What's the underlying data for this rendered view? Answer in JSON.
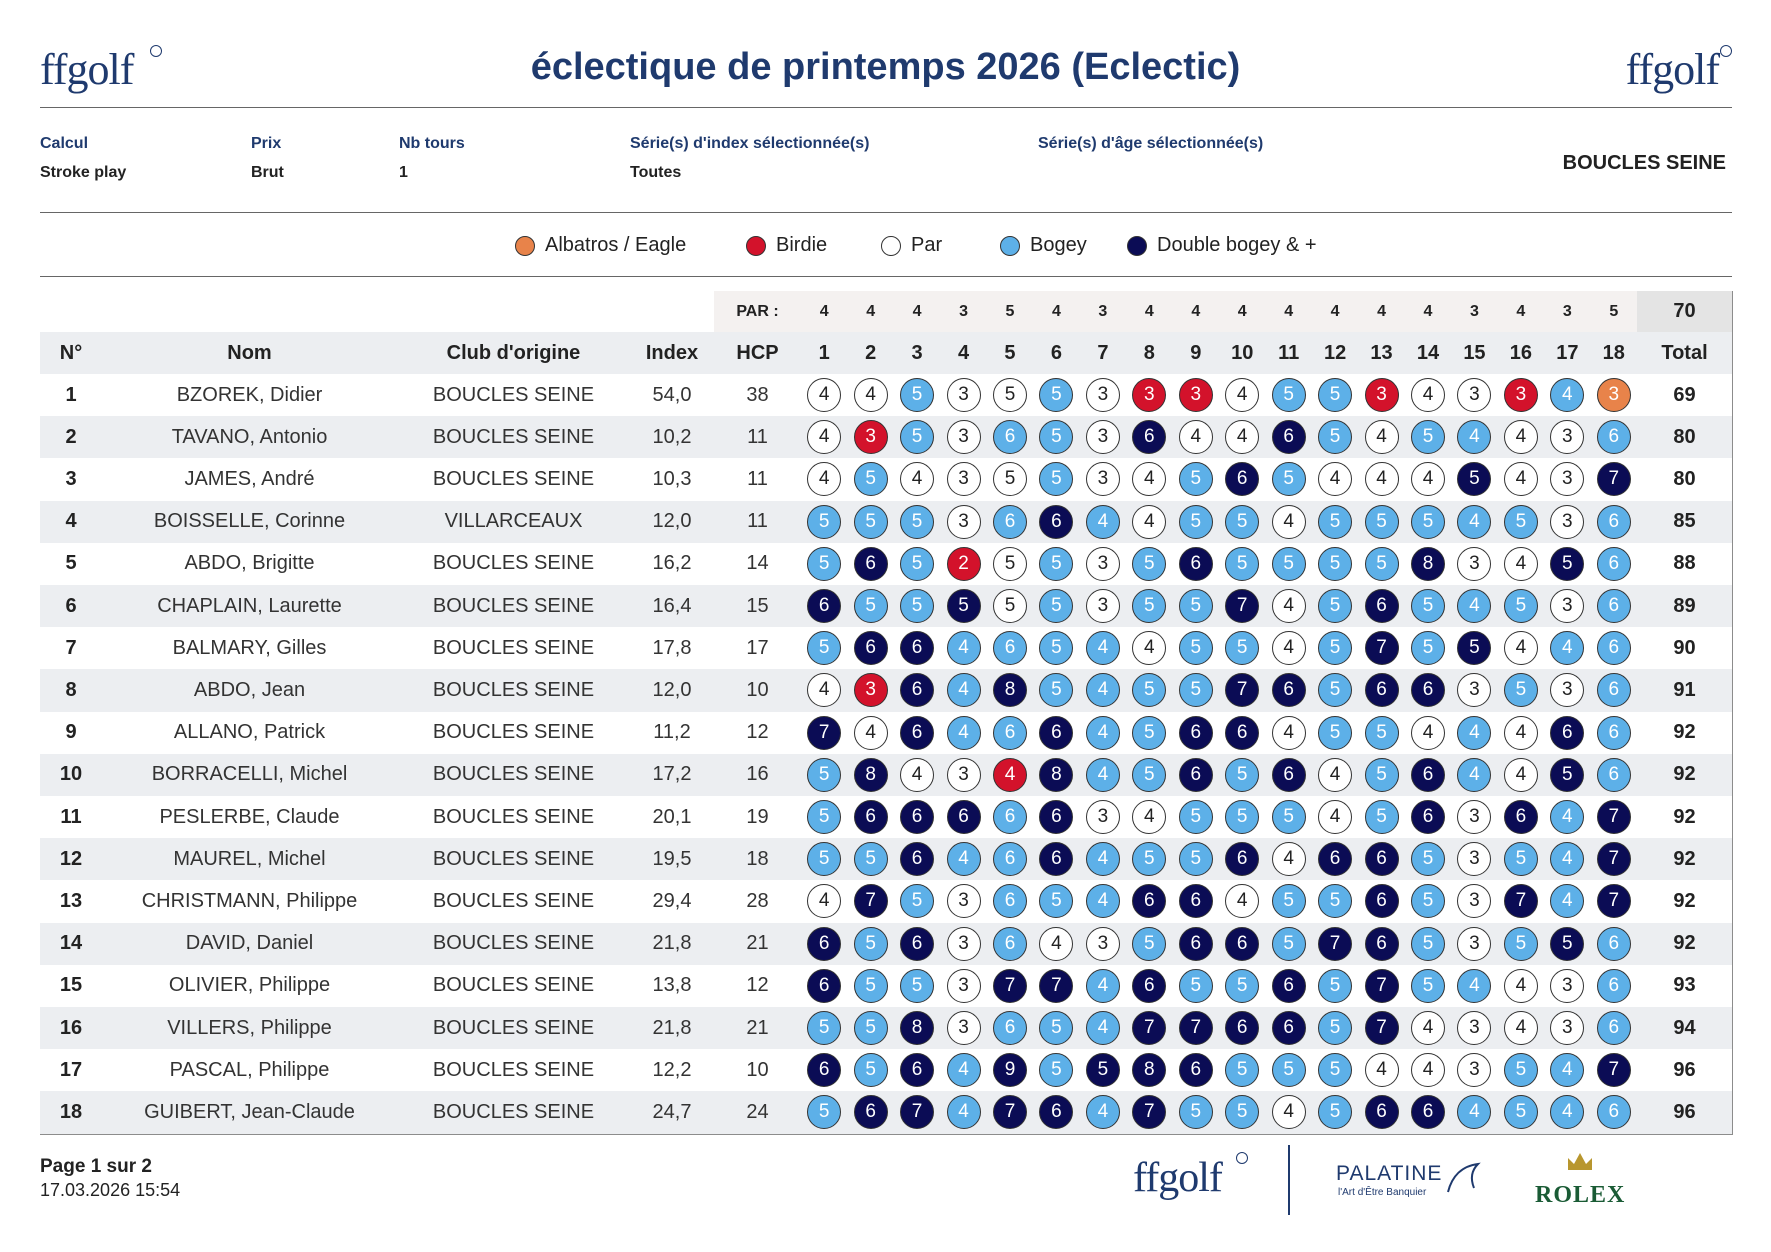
{
  "header": {
    "logo_left": "ffgolf",
    "title": "éclectique de printemps 2026 (Eclectic)",
    "logo_right": "ffgolf"
  },
  "info": {
    "fields": [
      {
        "label": "Calcul",
        "value": "Stroke play"
      },
      {
        "label": "Prix",
        "value": "Brut"
      },
      {
        "label": "Nb tours",
        "value": "1"
      },
      {
        "label": "Série(s) d'index sélectionnée(s)",
        "value": "Toutes"
      },
      {
        "label": "Série(s) d'âge sélectionnée(s)"
      }
    ],
    "club": "BOUCLES SEINE"
  },
  "legend": [
    {
      "label": "Albatros / Eagle",
      "color": "#e8834a"
    },
    {
      "label": "Birdie",
      "color": "#d3122b"
    },
    {
      "label": "Par",
      "color": "#ffffff"
    },
    {
      "label": "Bogey",
      "color": "#5db0e8"
    },
    {
      "label": "Double bogey & +",
      "color": "#0b0c55"
    }
  ],
  "table": {
    "par_label": "PAR :",
    "par": [
      4,
      4,
      4,
      3,
      5,
      4,
      3,
      4,
      4,
      4,
      4,
      4,
      4,
      4,
      3,
      4,
      3,
      5
    ],
    "par_total": 70,
    "columns": [
      "N°",
      "Nom",
      "Club d'origine",
      "Index",
      "HCP",
      "1",
      "2",
      "3",
      "4",
      "5",
      "6",
      "7",
      "8",
      "9",
      "10",
      "11",
      "12",
      "13",
      "14",
      "15",
      "16",
      "17",
      "18",
      "Total"
    ],
    "rows": [
      {
        "rank": 1,
        "name": "BZOREK, Didier",
        "club": "BOUCLES SEINE",
        "index": "54,0",
        "hcp": 38,
        "scores": [
          4,
          4,
          5,
          3,
          5,
          5,
          3,
          3,
          3,
          4,
          5,
          5,
          3,
          4,
          3,
          3,
          4,
          3
        ],
        "total": 69
      },
      {
        "rank": 2,
        "name": "TAVANO, Antonio",
        "club": "BOUCLES SEINE",
        "index": "10,2",
        "hcp": 11,
        "scores": [
          4,
          3,
          5,
          3,
          6,
          5,
          3,
          6,
          4,
          4,
          6,
          5,
          4,
          5,
          4,
          4,
          3,
          6
        ],
        "total": 80
      },
      {
        "rank": 3,
        "name": "JAMES, André",
        "club": "BOUCLES SEINE",
        "index": "10,3",
        "hcp": 11,
        "scores": [
          4,
          5,
          4,
          3,
          5,
          5,
          3,
          4,
          5,
          6,
          5,
          4,
          4,
          4,
          5,
          4,
          3,
          7
        ],
        "total": 80
      },
      {
        "rank": 4,
        "name": "BOISSELLE, Corinne",
        "club": "VILLARCEAUX",
        "index": "12,0",
        "hcp": 11,
        "scores": [
          5,
          5,
          5,
          3,
          6,
          6,
          4,
          4,
          5,
          5,
          4,
          5,
          5,
          5,
          4,
          5,
          3,
          6
        ],
        "total": 85
      },
      {
        "rank": 5,
        "name": "ABDO, Brigitte",
        "club": "BOUCLES SEINE",
        "index": "16,2",
        "hcp": 14,
        "scores": [
          5,
          6,
          5,
          2,
          5,
          5,
          3,
          5,
          6,
          5,
          5,
          5,
          5,
          8,
          3,
          4,
          5,
          6
        ],
        "total": 88
      },
      {
        "rank": 6,
        "name": "CHAPLAIN, Laurette",
        "club": "BOUCLES SEINE",
        "index": "16,4",
        "hcp": 15,
        "scores": [
          6,
          5,
          5,
          5,
          5,
          5,
          3,
          5,
          5,
          7,
          4,
          5,
          6,
          5,
          4,
          5,
          3,
          6
        ],
        "total": 89
      },
      {
        "rank": 7,
        "name": "BALMARY, Gilles",
        "club": "BOUCLES SEINE",
        "index": "17,8",
        "hcp": 17,
        "scores": [
          5,
          6,
          6,
          4,
          6,
          5,
          4,
          4,
          5,
          5,
          4,
          5,
          7,
          5,
          5,
          4,
          4,
          6
        ],
        "total": 90
      },
      {
        "rank": 8,
        "name": "ABDO, Jean",
        "club": "BOUCLES SEINE",
        "index": "12,0",
        "hcp": 10,
        "scores": [
          4,
          3,
          6,
          4,
          8,
          5,
          4,
          5,
          5,
          7,
          6,
          5,
          6,
          6,
          3,
          5,
          3,
          6
        ],
        "total": 91
      },
      {
        "rank": 9,
        "name": "ALLANO, Patrick",
        "club": "BOUCLES SEINE",
        "index": "11,2",
        "hcp": 12,
        "scores": [
          7,
          4,
          6,
          4,
          6,
          6,
          4,
          5,
          6,
          6,
          4,
          5,
          5,
          4,
          4,
          4,
          6,
          6
        ],
        "total": 92
      },
      {
        "rank": 10,
        "name": "BORRACELLI, Michel",
        "club": "BOUCLES SEINE",
        "index": "17,2",
        "hcp": 16,
        "scores": [
          5,
          8,
          4,
          3,
          4,
          8,
          4,
          5,
          6,
          5,
          6,
          4,
          5,
          6,
          4,
          4,
          5,
          6
        ],
        "total": 92
      },
      {
        "rank": 11,
        "name": "PESLERBE, Claude",
        "club": "BOUCLES SEINE",
        "index": "20,1",
        "hcp": 19,
        "scores": [
          5,
          6,
          6,
          6,
          6,
          6,
          3,
          4,
          5,
          5,
          5,
          4,
          5,
          6,
          3,
          6,
          4,
          7
        ],
        "total": 92
      },
      {
        "rank": 12,
        "name": "MAUREL, Michel",
        "club": "BOUCLES SEINE",
        "index": "19,5",
        "hcp": 18,
        "scores": [
          5,
          5,
          6,
          4,
          6,
          6,
          4,
          5,
          5,
          6,
          4,
          6,
          6,
          5,
          3,
          5,
          4,
          7
        ],
        "total": 92
      },
      {
        "rank": 13,
        "name": "CHRISTMANN, Philippe",
        "club": "BOUCLES SEINE",
        "index": "29,4",
        "hcp": 28,
        "scores": [
          4,
          7,
          5,
          3,
          6,
          5,
          4,
          6,
          6,
          4,
          5,
          5,
          6,
          5,
          3,
          7,
          4,
          7
        ],
        "total": 92
      },
      {
        "rank": 14,
        "name": "DAVID, Daniel",
        "club": "BOUCLES SEINE",
        "index": "21,8",
        "hcp": 21,
        "scores": [
          6,
          5,
          6,
          3,
          6,
          4,
          3,
          5,
          6,
          6,
          5,
          7,
          6,
          5,
          3,
          5,
          5,
          6
        ],
        "total": 92
      },
      {
        "rank": 15,
        "name": "OLIVIER, Philippe",
        "club": "BOUCLES SEINE",
        "index": "13,8",
        "hcp": 12,
        "scores": [
          6,
          5,
          5,
          3,
          7,
          7,
          4,
          6,
          5,
          5,
          6,
          5,
          7,
          5,
          4,
          4,
          3,
          6
        ],
        "total": 93
      },
      {
        "rank": 16,
        "name": "VILLERS, Philippe",
        "club": "BOUCLES SEINE",
        "index": "21,8",
        "hcp": 21,
        "scores": [
          5,
          5,
          8,
          3,
          6,
          5,
          4,
          7,
          7,
          6,
          6,
          5,
          7,
          4,
          3,
          4,
          3,
          6
        ],
        "total": 94
      },
      {
        "rank": 17,
        "name": "PASCAL, Philippe",
        "club": "BOUCLES SEINE",
        "index": "12,2",
        "hcp": 10,
        "scores": [
          6,
          5,
          6,
          4,
          9,
          5,
          5,
          8,
          6,
          5,
          5,
          5,
          4,
          4,
          3,
          5,
          4,
          7
        ],
        "total": 96
      },
      {
        "rank": 18,
        "name": "GUIBERT, Jean-Claude",
        "club": "BOUCLES SEINE",
        "index": "24,7",
        "hcp": 24,
        "scores": [
          5,
          6,
          7,
          4,
          7,
          6,
          4,
          7,
          5,
          5,
          4,
          5,
          6,
          6,
          4,
          5,
          4,
          6
        ],
        "total": 96
      }
    ]
  },
  "footer": {
    "page": "Page 1 sur 2",
    "date": "17.03.2026 15:54",
    "sponsors": {
      "ffgolf": "ffgolf",
      "palatine": "PALATINE",
      "palatine_tagline": "l'Art d'Être Banquier",
      "rolex": "ROLEX"
    }
  }
}
